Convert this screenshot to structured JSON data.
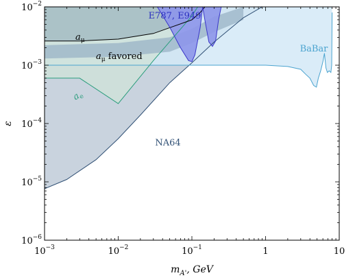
{
  "chart_data": {
    "type": "line",
    "xlabel": "m_{A'}, GeV",
    "ylabel": "ε",
    "xscale": "log",
    "yscale": "log",
    "xlim": [
      0.001,
      10
    ],
    "ylim": [
      1e-06,
      0.01
    ],
    "grid": false,
    "x_ticks": [
      {
        "base": "10",
        "exp": "−3"
      },
      {
        "base": "10",
        "exp": "−2"
      },
      {
        "base": "10",
        "exp": "−1"
      },
      {
        "base": "1",
        "exp": ""
      },
      {
        "base": "10",
        "exp": ""
      }
    ],
    "y_ticks": [
      {
        "base": "10",
        "exp": "−6"
      },
      {
        "base": "10",
        "exp": "−5"
      },
      {
        "base": "10",
        "exp": "−4"
      },
      {
        "base": "10",
        "exp": "−3"
      },
      {
        "base": "10",
        "exp": "−2"
      }
    ],
    "series": [
      {
        "name": "NA64",
        "color": "#2f4f74",
        "fill": "#c9d3de",
        "x": [
          0.001,
          0.002,
          0.005,
          0.01,
          0.02,
          0.05,
          0.1,
          0.2,
          0.5,
          0.9
        ],
        "y": [
          7.6e-06,
          1.1e-05,
          2.4e-05,
          5.5e-05,
          0.00014,
          0.0005,
          0.0011,
          0.0025,
          0.0065,
          0.01
        ]
      },
      {
        "name": "BaBar",
        "color": "#4aa3cf",
        "fill": "#d3e9f7",
        "x": [
          0.001,
          0.01,
          0.1,
          0.5,
          1.0,
          2.0,
          3.0,
          3.5,
          4.0,
          4.5,
          4.9,
          5.2,
          5.6,
          6.0,
          6.3,
          6.6,
          6.9,
          7.3,
          7.7,
          7.9,
          8.0
        ],
        "y": [
          0.001,
          0.001,
          0.001,
          0.001,
          0.001,
          0.00095,
          0.00085,
          0.0007,
          0.0006,
          0.00045,
          0.00042,
          0.0006,
          0.0008,
          0.00115,
          0.0016,
          0.0009,
          0.00075,
          0.0008,
          0.00075,
          0.001,
          0.008
        ]
      },
      {
        "name": "E787, E949",
        "color": "#3a36c8",
        "fill": "#8d96ea",
        "x": [
          0.034,
          0.05,
          0.07,
          0.09,
          0.1,
          0.11,
          0.13,
          0.14,
          0.15,
          0.17,
          0.19,
          0.21,
          0.23,
          0.25
        ],
        "y": [
          0.01,
          0.0045,
          0.002,
          0.0012,
          0.00115,
          0.0015,
          0.0045,
          0.01,
          0.006,
          0.0025,
          0.0021,
          0.0026,
          0.006,
          0.01
        ]
      },
      {
        "name": "a_μ",
        "color": "#000000",
        "x": [
          0.001,
          0.003,
          0.01,
          0.03,
          0.1,
          0.13,
          0.15
        ],
        "y": [
          0.0026,
          0.0026,
          0.0028,
          0.0035,
          0.006,
          0.008,
          0.01
        ]
      },
      {
        "name": "a_e",
        "color": "#2a9d7c",
        "fill": "#cfe2d8",
        "x": [
          0.001,
          0.003,
          0.01,
          0.03,
          0.1,
          0.12
        ],
        "y": [
          0.0006,
          0.0006,
          0.00022,
          0.0012,
          0.007,
          0.01
        ]
      }
    ],
    "band": {
      "name": "a_μ favored",
      "color": "#9ab3c6",
      "x": [
        0.001,
        0.01,
        0.05,
        0.1,
        0.2,
        0.5
      ],
      "upper": [
        0.0022,
        0.0024,
        0.003,
        0.0042,
        0.0068,
        0.01
      ],
      "lower": [
        0.0013,
        0.0014,
        0.0017,
        0.0024,
        0.0037,
        0.006
      ]
    },
    "annotations": [
      {
        "key": "na64",
        "text": "NA64",
        "color": "#2f4f74"
      },
      {
        "key": "babar",
        "text": "BaBar",
        "color": "#4aa3cf"
      },
      {
        "key": "e787",
        "text": "E787, E949",
        "color": "#2a2fc0"
      },
      {
        "key": "amu",
        "main": "a",
        "sub": "μ",
        "rest": "",
        "color": "#000000"
      },
      {
        "key": "amu_fav",
        "main": "a",
        "sub": "μ",
        "rest": " favored",
        "color": "#000000"
      },
      {
        "key": "ae",
        "main": "a",
        "sub": "e",
        "rest": "",
        "color": "#2a9d7c"
      }
    ]
  }
}
